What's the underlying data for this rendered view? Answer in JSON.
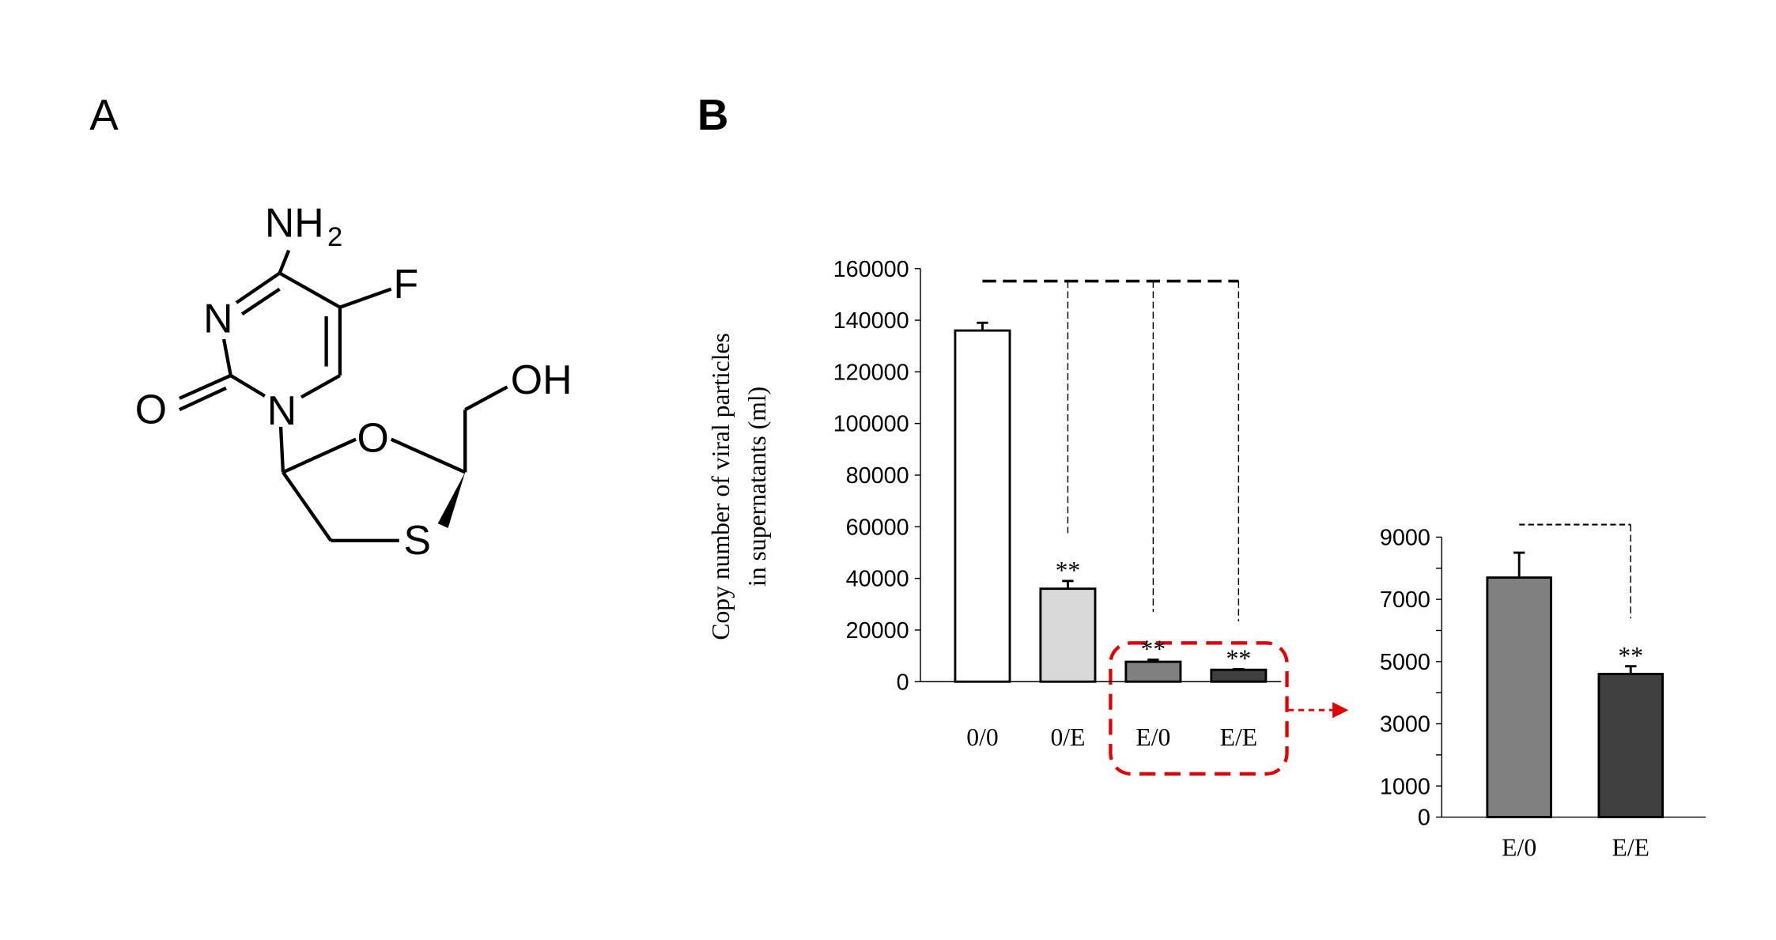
{
  "panel_a": {
    "label": "A",
    "atoms": {
      "amine": "NH",
      "amine_subscript": "2",
      "fluorine": "F",
      "ring_n3": "N",
      "carbonyl_o": "O",
      "ring_n1": "N",
      "hydroxyl": "OH",
      "ring_o": "O",
      "ring_s": "S"
    }
  },
  "panel_b": {
    "label": "B"
  },
  "chart_data": [
    {
      "type": "bar",
      "y_label": [
        "Copy number of viral particles",
        "in supernatants (ml)"
      ],
      "categories": [
        "0/0",
        "0/E",
        "E/0",
        "E/E"
      ],
      "values": [
        136000,
        36000,
        7700,
        4600
      ],
      "errors": [
        3000,
        3000,
        800,
        250
      ],
      "colors": [
        "#ffffff",
        "#d9d9d9",
        "#808080",
        "#404040"
      ],
      "significance": [
        null,
        "**",
        "**",
        "**"
      ],
      "ylim": [
        0,
        160000
      ],
      "yticks": [
        0,
        20000,
        40000,
        60000,
        80000,
        100000,
        120000,
        140000,
        160000
      ]
    },
    {
      "type": "bar",
      "categories": [
        "E/0",
        "E/E"
      ],
      "values": [
        7700,
        4600
      ],
      "errors": [
        800,
        250
      ],
      "colors": [
        "#808080",
        "#404040"
      ],
      "significance": [
        null,
        "**"
      ],
      "ylim": [
        0,
        9000
      ],
      "yticks": [
        0,
        1000,
        3000,
        5000,
        7000,
        9000
      ],
      "minor_yticks": [
        2000,
        4000,
        6000,
        8000
      ]
    }
  ]
}
